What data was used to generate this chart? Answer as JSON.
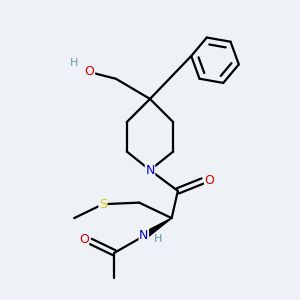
{
  "background_color": "#eef1f5",
  "atom_colors": {
    "C": "#000000",
    "N": "#0000cc",
    "O": "#cc0000",
    "S": "#cccc00",
    "H": "#5c9ea0"
  },
  "bond_color": "#000000",
  "bond_width": 1.6,
  "figsize": [
    3.0,
    3.0
  ],
  "dpi": 100
}
